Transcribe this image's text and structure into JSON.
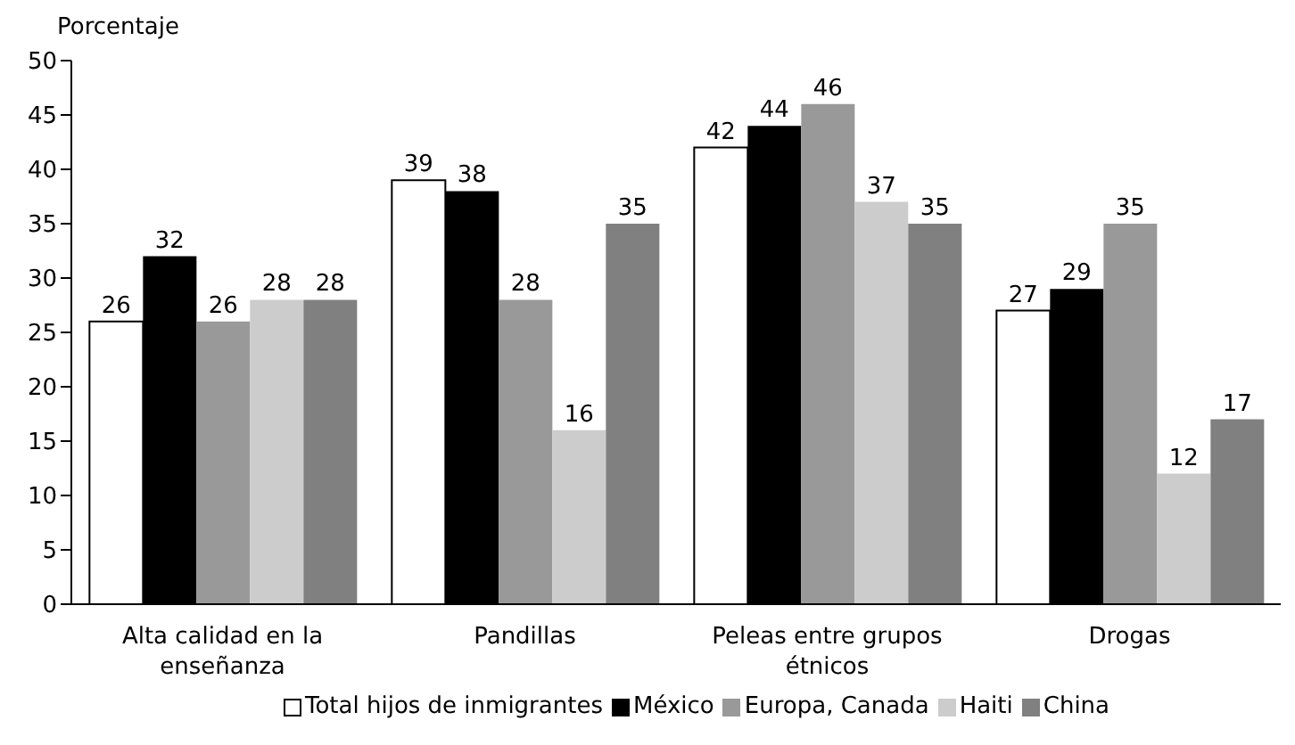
{
  "chart_data": {
    "type": "bar",
    "ylabel": "Porcentaje",
    "categories": [
      "Alta calidad en la enseñanza",
      "Pandillas",
      "Peleas entre grupos étnicos",
      "Drogas"
    ],
    "series": [
      {
        "name": "Total hijos de inmigrantes",
        "color": "#ffffff",
        "values": [
          26,
          39,
          42,
          27
        ]
      },
      {
        "name": "México",
        "color": "#000000",
        "values": [
          32,
          38,
          44,
          29
        ]
      },
      {
        "name": "Europa, Canada",
        "color": "#999999",
        "values": [
          26,
          28,
          46,
          35
        ]
      },
      {
        "name": "Haiti",
        "color": "#cccccc",
        "values": [
          28,
          16,
          37,
          12
        ]
      },
      {
        "name": "China",
        "color": "#808080",
        "values": [
          28,
          35,
          35,
          17
        ]
      }
    ],
    "ylim": [
      0,
      50
    ],
    "yticks": [
      0,
      5,
      10,
      15,
      20,
      25,
      30,
      35,
      40,
      45,
      50
    ],
    "grid": false,
    "legend": "bottom",
    "data_labels": true
  }
}
